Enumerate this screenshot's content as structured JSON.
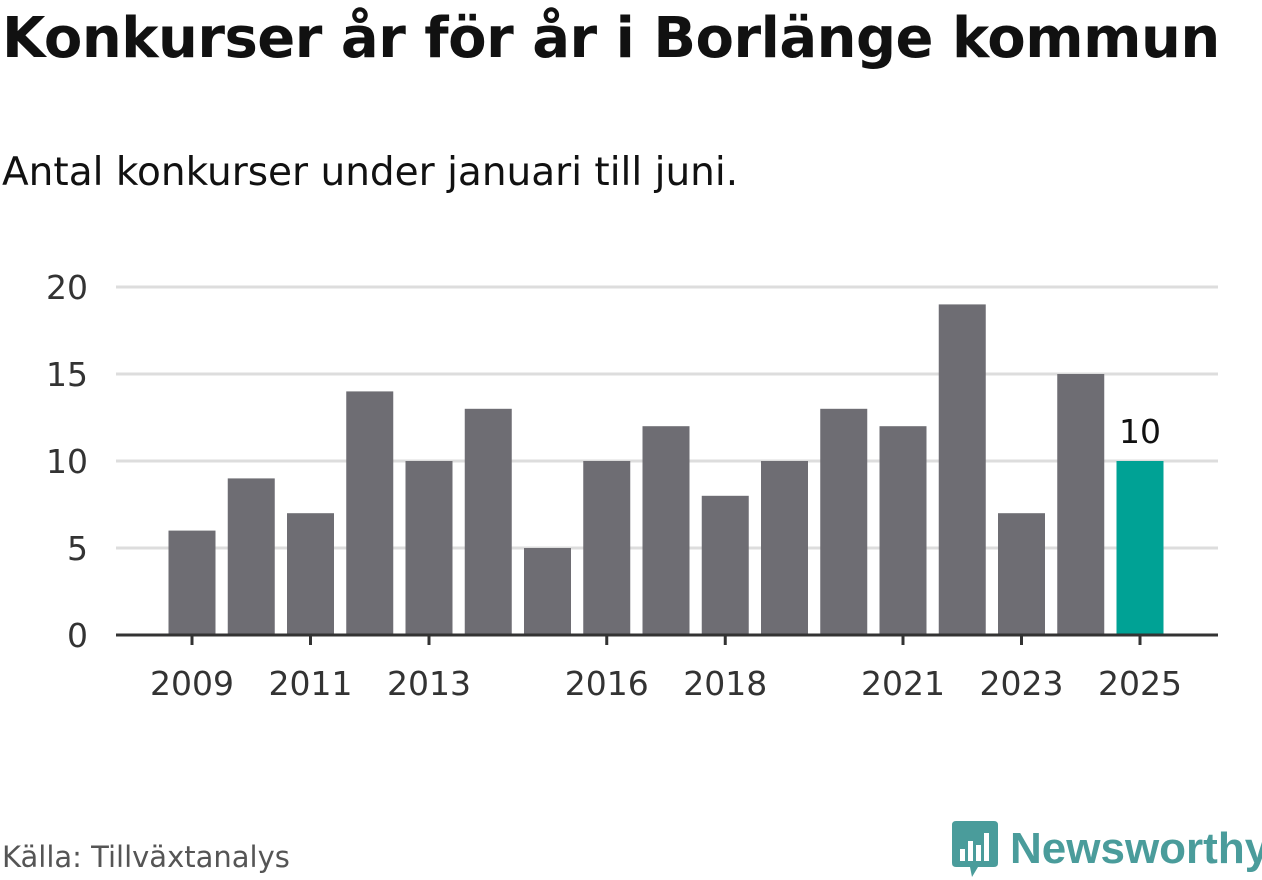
{
  "header": {
    "title": "Konkurser år för år i Borlänge kommun",
    "subtitle": "Antal konkurser under januari till juni."
  },
  "footer": {
    "source": "Källa: Tillväxtanalys",
    "brand": "Newsworthy"
  },
  "colors": {
    "bar": "#6e6d73",
    "highlight": "#00a295",
    "grid": "#dddddd",
    "axis": "#333333",
    "brand": "#4a9c9b"
  },
  "icons": {
    "brand": "newsworthy-logo-icon"
  },
  "chart_data": {
    "type": "bar",
    "categories": [
      "2009",
      "2010",
      "2011",
      "2012",
      "2013",
      "2014",
      "2015",
      "2016",
      "2017",
      "2018",
      "2019",
      "2020",
      "2021",
      "2022",
      "2023",
      "2024",
      "2025"
    ],
    "values": [
      6,
      9,
      7,
      14,
      10,
      13,
      5,
      10,
      12,
      8,
      10,
      13,
      12,
      19,
      7,
      15,
      10
    ],
    "x_tick_labels": [
      "2009",
      "2011",
      "2013",
      "2016",
      "2018",
      "2021",
      "2023",
      "2025"
    ],
    "y_ticks": [
      0,
      5,
      10,
      15,
      20
    ],
    "ylim": [
      0,
      20
    ],
    "highlight": "2025",
    "data_labels": [
      {
        "category": "2025",
        "text": "10"
      }
    ],
    "grid": true,
    "xlabel": "",
    "ylabel": ""
  }
}
